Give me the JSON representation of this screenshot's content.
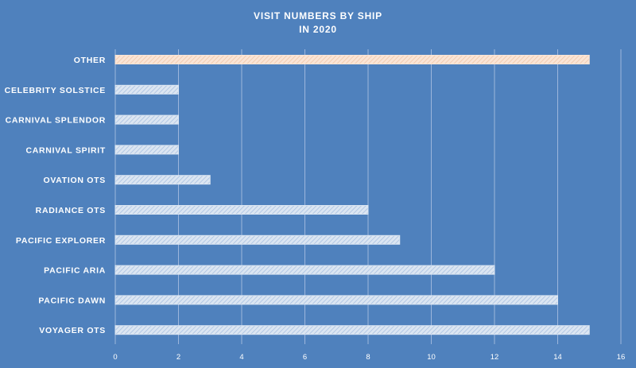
{
  "chart_data": {
    "type": "bar",
    "orientation": "horizontal",
    "title_lines": [
      "VISIT NUMBERS BY SHIP",
      "IN 2020"
    ],
    "categories": [
      "OTHER",
      "CELEBRITY SOLSTICE",
      "CARNIVAL SPLENDOR",
      "CARNIVAL SPIRIT",
      "OVATION OTS",
      "RADIANCE OTS",
      "PACIFIC EXPLORER",
      "PACIFIC ARIA",
      "PACIFIC DAWN",
      "VOYAGER OTS"
    ],
    "values": [
      15,
      2,
      2,
      2,
      3,
      8,
      9,
      12,
      14,
      15
    ],
    "highlight_category": "OTHER",
    "xlim": [
      0,
      16
    ],
    "xticks": [
      0,
      2,
      4,
      6,
      8,
      10,
      12,
      14,
      16
    ],
    "grid": "vertical",
    "legend": "none",
    "colors": {
      "background": "#4f81bd",
      "bar": "#dce6f2",
      "bar_highlight": "#fbe5d6",
      "text": "#ffffff",
      "grid": "#9db6dc"
    }
  }
}
